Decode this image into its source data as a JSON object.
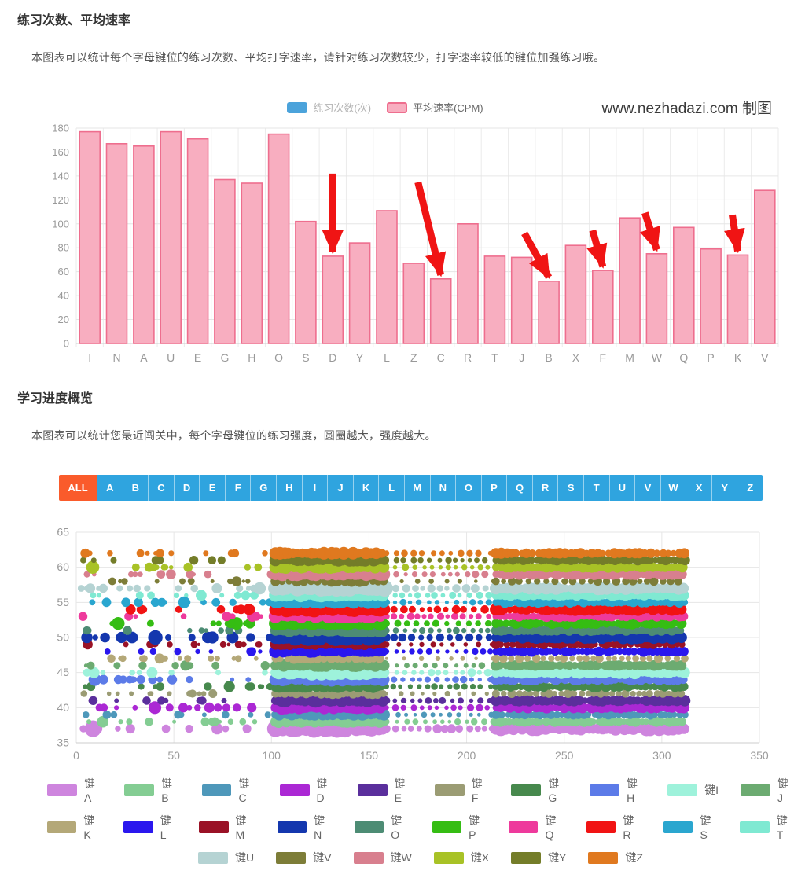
{
  "section1": {
    "title": "练习次数、平均速率",
    "description": "本图表可以统计每个字母键位的练习次数、平均打字速率，请针对练习次数较少，打字速率较低的键位加强练习哦。"
  },
  "section2": {
    "title": "学习进度概览",
    "description": "本图表可以统计您最近闯关中，每个字母键位的练习强度，圆圈越大，强度越大。"
  },
  "watermark": "www.nezhadazi.com 制图",
  "filter": {
    "selected": "ALL",
    "all_label": "ALL",
    "all_color": "#fa5b2b",
    "letter_color": "#2fa4df",
    "letters": [
      "A",
      "B",
      "C",
      "D",
      "E",
      "F",
      "G",
      "H",
      "I",
      "J",
      "K",
      "L",
      "M",
      "N",
      "O",
      "P",
      "Q",
      "R",
      "S",
      "T",
      "U",
      "V",
      "W",
      "X",
      "Y",
      "Z"
    ]
  },
  "chart_data": [
    {
      "type": "bar",
      "title": "",
      "legend": [
        {
          "label": "练习次数(次)",
          "color": "#4ba3db",
          "disabled": true
        },
        {
          "label": "平均速率(CPM)",
          "color": "#f8aec0",
          "border": "#ee6e8e",
          "disabled": false
        }
      ],
      "categories": [
        "I",
        "N",
        "A",
        "U",
        "E",
        "G",
        "H",
        "O",
        "S",
        "D",
        "Y",
        "L",
        "Z",
        "C",
        "R",
        "T",
        "J",
        "B",
        "X",
        "F",
        "M",
        "W",
        "Q",
        "P",
        "K",
        "V"
      ],
      "values": [
        177,
        167,
        165,
        177,
        171,
        137,
        134,
        175,
        102,
        73,
        84,
        111,
        67,
        54,
        100,
        73,
        72,
        52,
        82,
        61,
        105,
        75,
        97,
        79,
        74,
        128
      ],
      "xlabel": "",
      "ylabel": "",
      "ylim": [
        0,
        180
      ],
      "ytick_step": 20,
      "grid": true,
      "bar_fill": "#f8aec0",
      "bar_stroke": "#ee6e8e",
      "axis_label_color": "#999999",
      "arrow_color": "#f01414",
      "arrows": [
        {
          "target": "D",
          "dx": 0,
          "dy": -100
        },
        {
          "target": "C",
          "dx": -29,
          "dy": -118
        },
        {
          "target": "B",
          "dx": -31,
          "dy": -56
        },
        {
          "target": "F",
          "dx": -13,
          "dy": -46
        },
        {
          "target": "W",
          "dx": -15,
          "dy": -47
        },
        {
          "target": "K",
          "dx": -7,
          "dy": -46
        }
      ]
    },
    {
      "type": "scatter",
      "title": "",
      "xlabel": "",
      "ylabel": "",
      "xlim": [
        0,
        350
      ],
      "ylim": [
        35,
        65
      ],
      "xticks": [
        0,
        50,
        100,
        150,
        200,
        250,
        300,
        350
      ],
      "yticks": [
        35,
        40,
        45,
        50,
        55,
        60,
        65
      ],
      "grid": true,
      "legend_position": "bottom",
      "bubble_meaning": "圆圈越大，强度越大",
      "point_pattern": {
        "sparse": {
          "x_range": [
            2,
            100
          ],
          "count_range": [
            9,
            17
          ],
          "r_range": [
            2.5,
            6
          ]
        },
        "dense1": {
          "x_range": [
            102,
            158
          ],
          "step": 1.8,
          "r_range": [
            5,
            8.5
          ]
        },
        "medium": {
          "x_range": [
            159,
            214
          ],
          "step": 4.2,
          "r_range": [
            2.5,
            4.5
          ]
        },
        "dense2": {
          "x_range": [
            215,
            312
          ],
          "step": 2.2,
          "r_range": [
            4,
            7
          ]
        }
      },
      "series": [
        {
          "name": "键A",
          "letter": "A",
          "y": 37,
          "color": "#ce85de",
          "size": 1.35,
          "density": 1
        },
        {
          "name": "键B",
          "letter": "B",
          "y": 38,
          "color": "#84cd93",
          "size": 0.95,
          "density": 1
        },
        {
          "name": "键C",
          "letter": "C",
          "y": 39,
          "color": "#4e98ba",
          "size": 0.9,
          "density": 0.85
        },
        {
          "name": "键D",
          "letter": "D",
          "y": 40,
          "color": "#ab28d4",
          "size": 1.05,
          "density": 1
        },
        {
          "name": "键E",
          "letter": "E",
          "y": 41,
          "color": "#5a2f9c",
          "size": 1.05,
          "density": 1
        },
        {
          "name": "键F",
          "letter": "F",
          "y": 42,
          "color": "#9b9c74",
          "size": 0.8,
          "density": 0.7
        },
        {
          "name": "键G",
          "letter": "G",
          "y": 43,
          "color": "#47894d",
          "size": 1.0,
          "density": 1
        },
        {
          "name": "键H",
          "letter": "H",
          "y": 44,
          "color": "#5c7be8",
          "size": 1.05,
          "density": 1
        },
        {
          "name": "键I",
          "letter": "I",
          "y": 45,
          "color": "#9ef2db",
          "size": 1.2,
          "density": 1
        },
        {
          "name": "键J",
          "letter": "J",
          "y": 46,
          "color": "#6cab71",
          "size": 1.0,
          "density": 0.9
        },
        {
          "name": "键K",
          "letter": "K",
          "y": 47,
          "color": "#b4a878",
          "size": 0.8,
          "density": 0.6
        },
        {
          "name": "键L",
          "letter": "L",
          "y": 48,
          "color": "#2a17ee",
          "size": 0.95,
          "density": 1
        },
        {
          "name": "键M",
          "letter": "M",
          "y": 49,
          "color": "#9a1226",
          "size": 0.85,
          "density": 0.8
        },
        {
          "name": "键N",
          "letter": "N",
          "y": 50,
          "color": "#1437ae",
          "size": 1.3,
          "density": 1
        },
        {
          "name": "键O",
          "letter": "O",
          "y": 51,
          "color": "#4d8c74",
          "size": 1.05,
          "density": 1
        },
        {
          "name": "键P",
          "letter": "P",
          "y": 52,
          "color": "#35bd13",
          "size": 1.1,
          "density": 0.9
        },
        {
          "name": "键Q",
          "letter": "Q",
          "y": 53,
          "color": "#ee3a9c",
          "size": 1.05,
          "density": 1
        },
        {
          "name": "键R",
          "letter": "R",
          "y": 54,
          "color": "#f11313",
          "size": 1.2,
          "density": 0.95
        },
        {
          "name": "键S",
          "letter": "S",
          "y": 55,
          "color": "#2aa6cf",
          "size": 1.0,
          "density": 1
        },
        {
          "name": "键T",
          "letter": "T",
          "y": 56,
          "color": "#7fe9d2",
          "size": 1.05,
          "density": 1
        },
        {
          "name": "键U",
          "letter": "U",
          "y": 57,
          "color": "#b5d3d3",
          "size": 1.25,
          "density": 1
        },
        {
          "name": "键V",
          "letter": "V",
          "y": 58,
          "color": "#7d7d38",
          "size": 0.85,
          "density": 0.55
        },
        {
          "name": "键W",
          "letter": "W",
          "y": 59,
          "color": "#d87f8e",
          "size": 1.05,
          "density": 1
        },
        {
          "name": "键X",
          "letter": "X",
          "y": 60,
          "color": "#a8c226",
          "size": 1.0,
          "density": 1
        },
        {
          "name": "键Y",
          "letter": "Y",
          "y": 61,
          "color": "#747d29",
          "size": 0.95,
          "density": 1
        },
        {
          "name": "键Z",
          "letter": "Z",
          "y": 62,
          "color": "#e0791f",
          "size": 1.0,
          "density": 0.85
        }
      ]
    }
  ]
}
